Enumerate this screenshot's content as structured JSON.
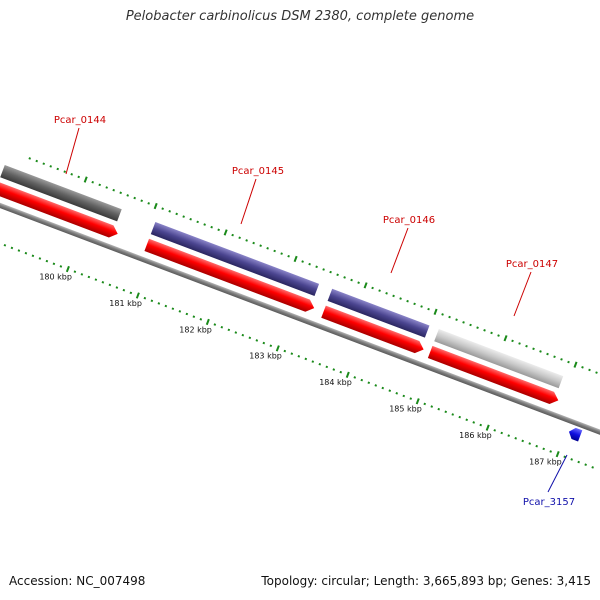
{
  "header": {
    "title": "Pelobacter carbinolicus DSM 2380, complete genome"
  },
  "footer": {
    "accession": "Accession: NC_007498",
    "summary": "Topology: circular; Length: 3,665,893 bp; Genes: 3,415"
  },
  "colors": {
    "backbone": "#8a8a8a",
    "cds_forward": "#ff0000",
    "gene_dark_gray": "#6b6b6b",
    "gene_slate_blue": "#4b4590",
    "gene_light_gray": "#c8c8c8",
    "gene_reverse_blue": "#1010e0",
    "label_forward": "#cc0000",
    "label_reverse": "#1010aa",
    "ticks": "#1a8a1a"
  },
  "scale": {
    "tick_labels": [
      "180 kbp",
      "181 kbp",
      "182 kbp",
      "183 kbp",
      "184 kbp",
      "185 kbp",
      "186 kbp",
      "187 kbp"
    ]
  },
  "genes": [
    {
      "id": "Pcar_0144",
      "strand": "forward",
      "top_color": "gene_dark_gray"
    },
    {
      "id": "Pcar_0145",
      "strand": "forward",
      "top_color": "gene_slate_blue"
    },
    {
      "id": "Pcar_0146",
      "strand": "forward",
      "top_color": "gene_slate_blue"
    },
    {
      "id": "Pcar_0147",
      "strand": "forward",
      "top_color": "gene_light_gray"
    },
    {
      "id": "Pcar_3157",
      "strand": "reverse",
      "top_color": "gene_reverse_blue"
    }
  ]
}
